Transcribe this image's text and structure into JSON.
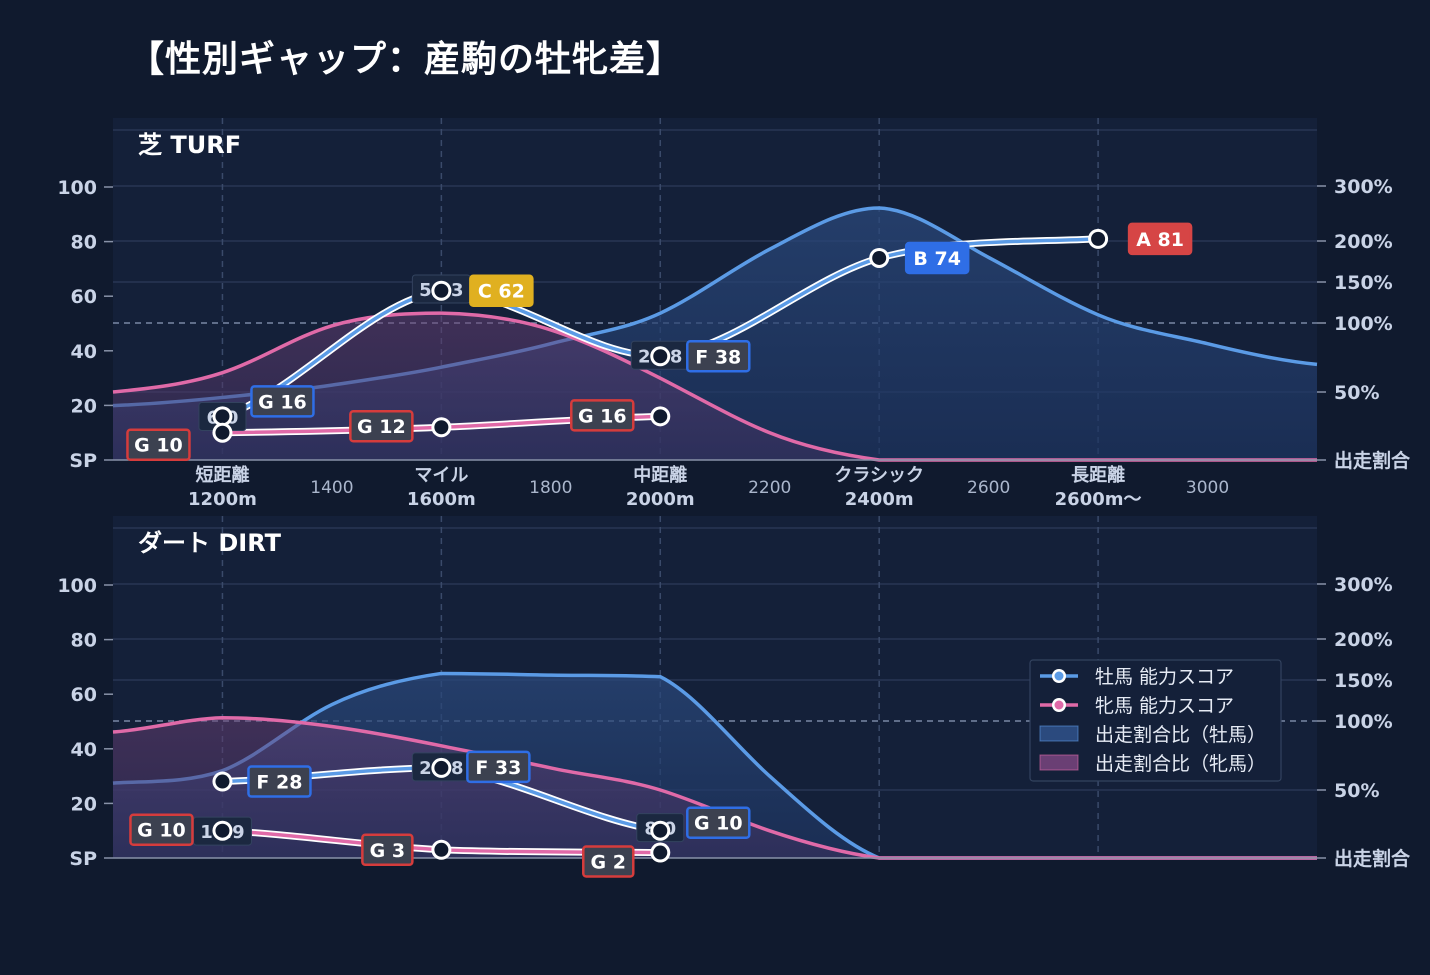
{
  "title": "【性別ギャップ：産駒の牡牝差】",
  "colors": {
    "background": "#101a2e",
    "panel": "#142039",
    "male": "#5b9be6",
    "female": "#e06aa8",
    "male_fill": "#27416e",
    "female_fill": "#5a3a6a",
    "grade_A": "#d64545",
    "grade_B": "#2f6ee6",
    "grade_C": "#e0b020",
    "grade_G_male": "#2f6ee6",
    "grade_G_female": "#d63c3c"
  },
  "legend": {
    "items": [
      {
        "label": "牡馬 能力スコア",
        "kind": "line-male"
      },
      {
        "label": "牝馬 能力スコア",
        "kind": "line-female"
      },
      {
        "label": "出走割合比（牡馬）",
        "kind": "area-male"
      },
      {
        "label": "出走割合比（牝馬）",
        "kind": "area-female"
      }
    ]
  },
  "chart_data": [
    {
      "type": "line",
      "panel_title": "芝 TURF",
      "left_axis": {
        "ticks": [
          "SP",
          "20",
          "40",
          "60",
          "80",
          "100"
        ],
        "values": [
          0,
          20,
          40,
          60,
          80,
          100
        ],
        "range": [
          0,
          100
        ]
      },
      "right_axis": {
        "ticks": [
          "出走割合",
          "50%",
          "100%",
          "150%",
          "200%",
          "300%"
        ],
        "values": [
          0,
          50,
          100,
          150,
          200,
          300
        ]
      },
      "x_axis": {
        "range": [
          1200,
          3200
        ],
        "major": [
          {
            "x": 1200,
            "lines": [
              "短距離",
              "1200m"
            ]
          },
          {
            "x": 1600,
            "lines": [
              "マイル",
              "1600m"
            ]
          },
          {
            "x": 2000,
            "lines": [
              "中距離",
              "2000m"
            ]
          },
          {
            "x": 2400,
            "lines": [
              "クラシック",
              "2400m"
            ]
          },
          {
            "x": 2800,
            "lines": [
              "長距離",
              "2600m〜"
            ]
          }
        ],
        "minor": [
          {
            "x": 1400,
            "label": "1400"
          },
          {
            "x": 1800,
            "label": "1800"
          },
          {
            "x": 2200,
            "label": "2200"
          },
          {
            "x": 2600,
            "label": "2600"
          },
          {
            "x": 3000,
            "label": "3000"
          }
        ]
      },
      "reference_line": 100,
      "series": [
        {
          "name": "牡馬 能力スコア",
          "sex": "male",
          "points": [
            {
              "x": 1200,
              "y": 16,
              "grade": "G",
              "score": 16
            },
            {
              "x": 1600,
              "y": 62,
              "grade": "C",
              "score": 62
            },
            {
              "x": 2000,
              "y": 38,
              "grade": "F",
              "score": 38
            },
            {
              "x": 2400,
              "y": 74,
              "grade": "B",
              "score": 74
            },
            {
              "x": 2800,
              "y": 81,
              "grade": "A",
              "score": 81
            }
          ]
        },
        {
          "name": "牝馬 能力スコア",
          "sex": "female",
          "points": [
            {
              "x": 1200,
              "y": 10,
              "grade": "G",
              "score": 10
            },
            {
              "x": 1600,
              "y": 12,
              "grade": "G",
              "score": 12
            },
            {
              "x": 2000,
              "y": 16,
              "grade": "G",
              "score": 16
            }
          ]
        },
        {
          "name": "出走割合比（牡馬）",
          "sex": "male",
          "kind": "area",
          "x": [
            1000,
            1200,
            1400,
            1600,
            1800,
            2000,
            2200,
            2400,
            2600,
            2800,
            3000,
            3200
          ],
          "percent": [
            40,
            46,
            55,
            68,
            85,
            112,
            190,
            260,
            180,
            110,
            85,
            70
          ]
        },
        {
          "name": "出走割合比（牝馬）",
          "sex": "female",
          "kind": "area",
          "x": [
            1000,
            1200,
            1400,
            1600,
            1800,
            2000,
            2200,
            2400,
            2600,
            3200
          ],
          "percent": [
            50,
            64,
            98,
            112,
            95,
            60,
            20,
            0,
            0,
            0
          ]
        }
      ],
      "gap_labels": [
        {
          "x": 1200,
          "value": "6.0"
        },
        {
          "x": 1600,
          "value": "50.3"
        },
        {
          "x": 2000,
          "value": "21.8"
        }
      ]
    },
    {
      "type": "line",
      "panel_title": "ダート DIRT",
      "left_axis": {
        "ticks": [
          "SP",
          "20",
          "40",
          "60",
          "80",
          "100"
        ],
        "values": [
          0,
          20,
          40,
          60,
          80,
          100
        ],
        "range": [
          0,
          100
        ]
      },
      "right_axis": {
        "ticks": [
          "出走割合",
          "50%",
          "100%",
          "150%",
          "200%",
          "300%"
        ],
        "values": [
          0,
          50,
          100,
          150,
          200,
          300
        ]
      },
      "reference_line": 100,
      "series": [
        {
          "name": "牡馬 能力スコア",
          "sex": "male",
          "points": [
            {
              "x": 1200,
              "y": 28,
              "grade": "F",
              "score": 28
            },
            {
              "x": 1600,
              "y": 33,
              "grade": "F",
              "score": 33
            },
            {
              "x": 2000,
              "y": 10,
              "grade": "G",
              "score": 10
            }
          ]
        },
        {
          "name": "牝馬 能力スコア",
          "sex": "female",
          "points": [
            {
              "x": 1200,
              "y": 10,
              "grade": "G",
              "score": 10
            },
            {
              "x": 1600,
              "y": 3,
              "grade": "G",
              "score": 3
            },
            {
              "x": 2000,
              "y": 2,
              "grade": "G",
              "score": 2
            }
          ]
        },
        {
          "name": "出走割合比（牡馬）",
          "sex": "male",
          "kind": "area",
          "x": [
            1000,
            1200,
            1400,
            1600,
            1800,
            2000,
            2200,
            2400,
            3200
          ],
          "percent": [
            55,
            64,
            120,
            158,
            156,
            154,
            60,
            0,
            0
          ]
        },
        {
          "name": "出走割合比（牝馬）",
          "sex": "female",
          "kind": "area",
          "x": [
            1000,
            1200,
            1400,
            1600,
            1800,
            2000,
            2200,
            2400,
            3200
          ],
          "percent": [
            92,
            104,
            96,
            82,
            66,
            50,
            20,
            0,
            0
          ]
        }
      ],
      "gap_labels": [
        {
          "x": 1200,
          "value": "17.9"
        },
        {
          "x": 1600,
          "value": "29.8"
        },
        {
          "x": 2000,
          "value": "8.0"
        }
      ]
    }
  ]
}
